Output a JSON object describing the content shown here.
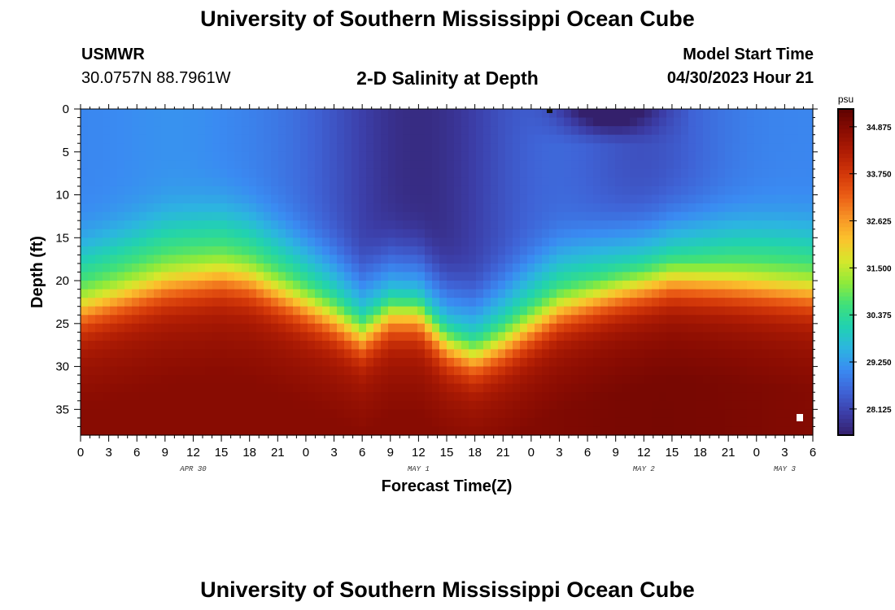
{
  "page": {
    "title": "University of Southern Mississippi Ocean Cube",
    "footer_title": "University of Southern Mississippi Ocean Cube",
    "station": "USMWR",
    "coordinates": "30.0757N  88.7961W",
    "subtitle": "2-D Salinity at Depth",
    "model_start_label": "Model Start Time",
    "model_start_value": "04/30/2023 Hour 21"
  },
  "chart_data": {
    "type": "heatmap",
    "title": "2-D Salinity at Depth",
    "xlabel": "Forecast Time(Z)",
    "ylabel": "Depth (ft)",
    "xlim": [
      0,
      78
    ],
    "ylim": [
      38,
      0
    ],
    "x_tick_labels": [
      "0",
      "3",
      "6",
      "9",
      "12",
      "15",
      "18",
      "21",
      "0",
      "3",
      "6",
      "9",
      "12",
      "15",
      "18",
      "21",
      "0",
      "3",
      "6",
      "9",
      "12",
      "15",
      "18",
      "21",
      "0",
      "3",
      "6"
    ],
    "y_ticks": [
      0,
      5,
      10,
      15,
      20,
      25,
      30,
      35
    ],
    "date_labels": [
      {
        "label": "APR 30",
        "x": 12
      },
      {
        "label": "MAY 1",
        "x": 36
      },
      {
        "label": "MAY 2",
        "x": 60
      },
      {
        "label": "MAY 3",
        "x": 75
      }
    ],
    "colorbar": {
      "unit": "psu",
      "min": 27.5,
      "max": 35.3,
      "ticks": [
        "34.875",
        "33.750",
        "32.625",
        "31.500",
        "30.375",
        "29.250",
        "28.125"
      ],
      "colors": [
        "#34206c",
        "#3c3ea8",
        "#3f63d6",
        "#3a8bf2",
        "#2cb5e0",
        "#21d2b0",
        "#3fe07a",
        "#8fea3a",
        "#d6e72c",
        "#fbc32d",
        "#f79326",
        "#eb5d15",
        "#d33809",
        "#b01d04",
        "#8a0c02",
        "#5e0201"
      ]
    },
    "halocline_depth_ft": [
      {
        "x": 0,
        "depth": 23
      },
      {
        "x": 3,
        "depth": 22
      },
      {
        "x": 9,
        "depth": 20
      },
      {
        "x": 15,
        "depth": 19
      },
      {
        "x": 18,
        "depth": 19.5
      },
      {
        "x": 21,
        "depth": 21
      },
      {
        "x": 27,
        "depth": 24
      },
      {
        "x": 30,
        "depth": 26
      },
      {
        "x": 33,
        "depth": 23.5
      },
      {
        "x": 36,
        "depth": 23.5
      },
      {
        "x": 39,
        "depth": 27
      },
      {
        "x": 42,
        "depth": 28.5
      },
      {
        "x": 45,
        "depth": 27
      },
      {
        "x": 51,
        "depth": 23
      },
      {
        "x": 57,
        "depth": 21
      },
      {
        "x": 63,
        "depth": 19.5
      },
      {
        "x": 69,
        "depth": 20
      },
      {
        "x": 78,
        "depth": 21
      }
    ]
  }
}
